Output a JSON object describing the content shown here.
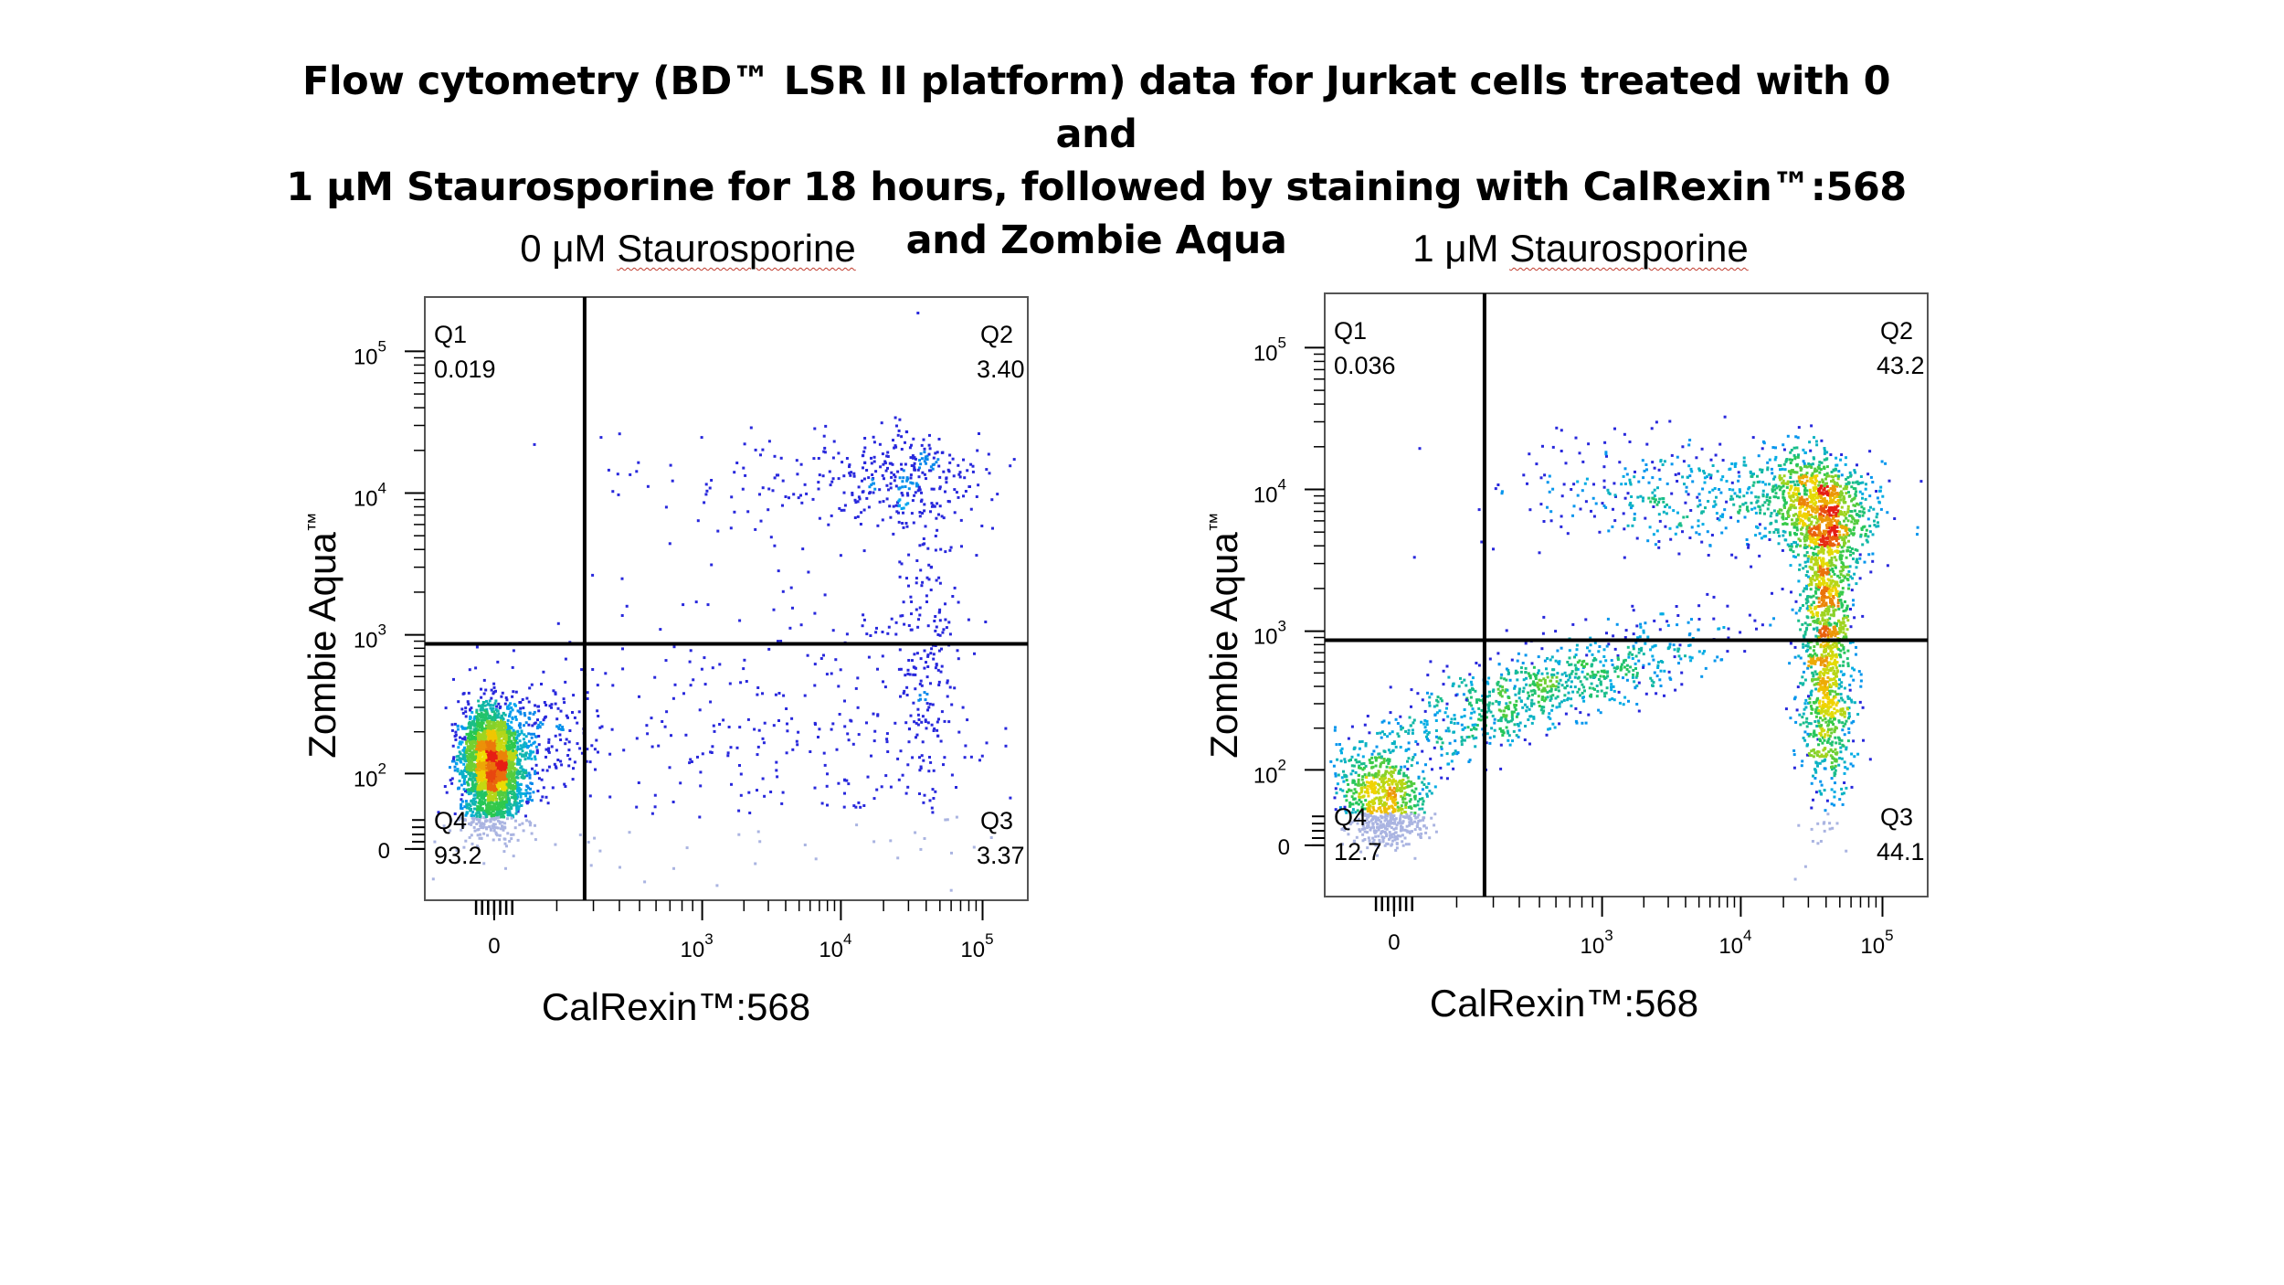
{
  "title_lines": [
    "Flow cytometry (BD™ LSR II platform) data for Jurkat cells treated with 0 and",
    "1 μM Staurosporine for 18 hours, followed by staining with CalRexin™:568",
    "and Zombie Aqua"
  ],
  "chart_data": [
    {
      "type": "scatter",
      "title_prefix": "0 μM ",
      "title_underlined": "Staurosporine",
      "xlabel": "CalRexin™:568",
      "ylabel": "Zombie Aqua",
      "ylabel_super": "™",
      "x_scale": "biexponential",
      "y_scale": "biexponential",
      "x_ticks": [
        {
          "value": "0",
          "text": "0"
        },
        {
          "value": "10^3",
          "base": "10",
          "exp": "3"
        },
        {
          "value": "10^4",
          "base": "10",
          "exp": "4"
        },
        {
          "value": "10^5",
          "base": "10",
          "exp": "5"
        }
      ],
      "y_ticks": [
        {
          "value": "0",
          "text": "0"
        },
        {
          "value": "10^2",
          "base": "10",
          "exp": "2"
        },
        {
          "value": "10^3",
          "base": "10",
          "exp": "3"
        },
        {
          "value": "10^4",
          "base": "10",
          "exp": "4"
        },
        {
          "value": "10^5",
          "base": "10",
          "exp": "5"
        }
      ],
      "quadrants": [
        {
          "name": "Q1",
          "value": "0.019"
        },
        {
          "name": "Q2",
          "value": "3.40"
        },
        {
          "name": "Q3",
          "value": "3.37"
        },
        {
          "name": "Q4",
          "value": "93.2"
        }
      ],
      "gate_x": 200,
      "gate_y": 800,
      "populations": [
        {
          "label": "live cluster",
          "x_log_center": 1.6,
          "y_log_center": 2.2,
          "density": "very high"
        },
        {
          "label": "dead cluster",
          "x_log_center": 4.6,
          "y_log_center": 4.05,
          "density": "low"
        },
        {
          "label": "Q3 stripe",
          "x_log_center": 4.6,
          "y_log_center": 2.5,
          "density": "low"
        }
      ]
    },
    {
      "type": "scatter",
      "title_prefix": "1 μM ",
      "title_underlined": "Staurosporine",
      "xlabel": "CalRexin™:568",
      "ylabel": "Zombie Aqua",
      "ylabel_super": "™",
      "x_scale": "biexponential",
      "y_scale": "biexponential",
      "x_ticks": [
        {
          "value": "0",
          "text": "0"
        },
        {
          "value": "10^3",
          "base": "10",
          "exp": "3"
        },
        {
          "value": "10^4",
          "base": "10",
          "exp": "4"
        },
        {
          "value": "10^5",
          "base": "10",
          "exp": "5"
        }
      ],
      "y_ticks": [
        {
          "value": "0",
          "text": "0"
        },
        {
          "value": "10^2",
          "base": "10",
          "exp": "2"
        },
        {
          "value": "10^3",
          "base": "10",
          "exp": "3"
        },
        {
          "value": "10^4",
          "base": "10",
          "exp": "4"
        },
        {
          "value": "10^5",
          "base": "10",
          "exp": "5"
        }
      ],
      "quadrants": [
        {
          "name": "Q1",
          "value": "0.036"
        },
        {
          "name": "Q2",
          "value": "43.2"
        },
        {
          "name": "Q3",
          "value": "44.1"
        },
        {
          "name": "Q4",
          "value": "12.7"
        }
      ],
      "gate_x": 200,
      "gate_y": 800,
      "populations": [
        {
          "label": "Q2 cluster",
          "x_log_center": 4.65,
          "y_log_center": 4.0,
          "density": "high"
        },
        {
          "label": "Q3 cluster",
          "x_log_center": 4.7,
          "y_log_center": 2.6,
          "density": "high"
        },
        {
          "label": "Q4 cluster",
          "x_log_center": 1.5,
          "y_log_center": 2.0,
          "density": "medium"
        }
      ]
    }
  ]
}
